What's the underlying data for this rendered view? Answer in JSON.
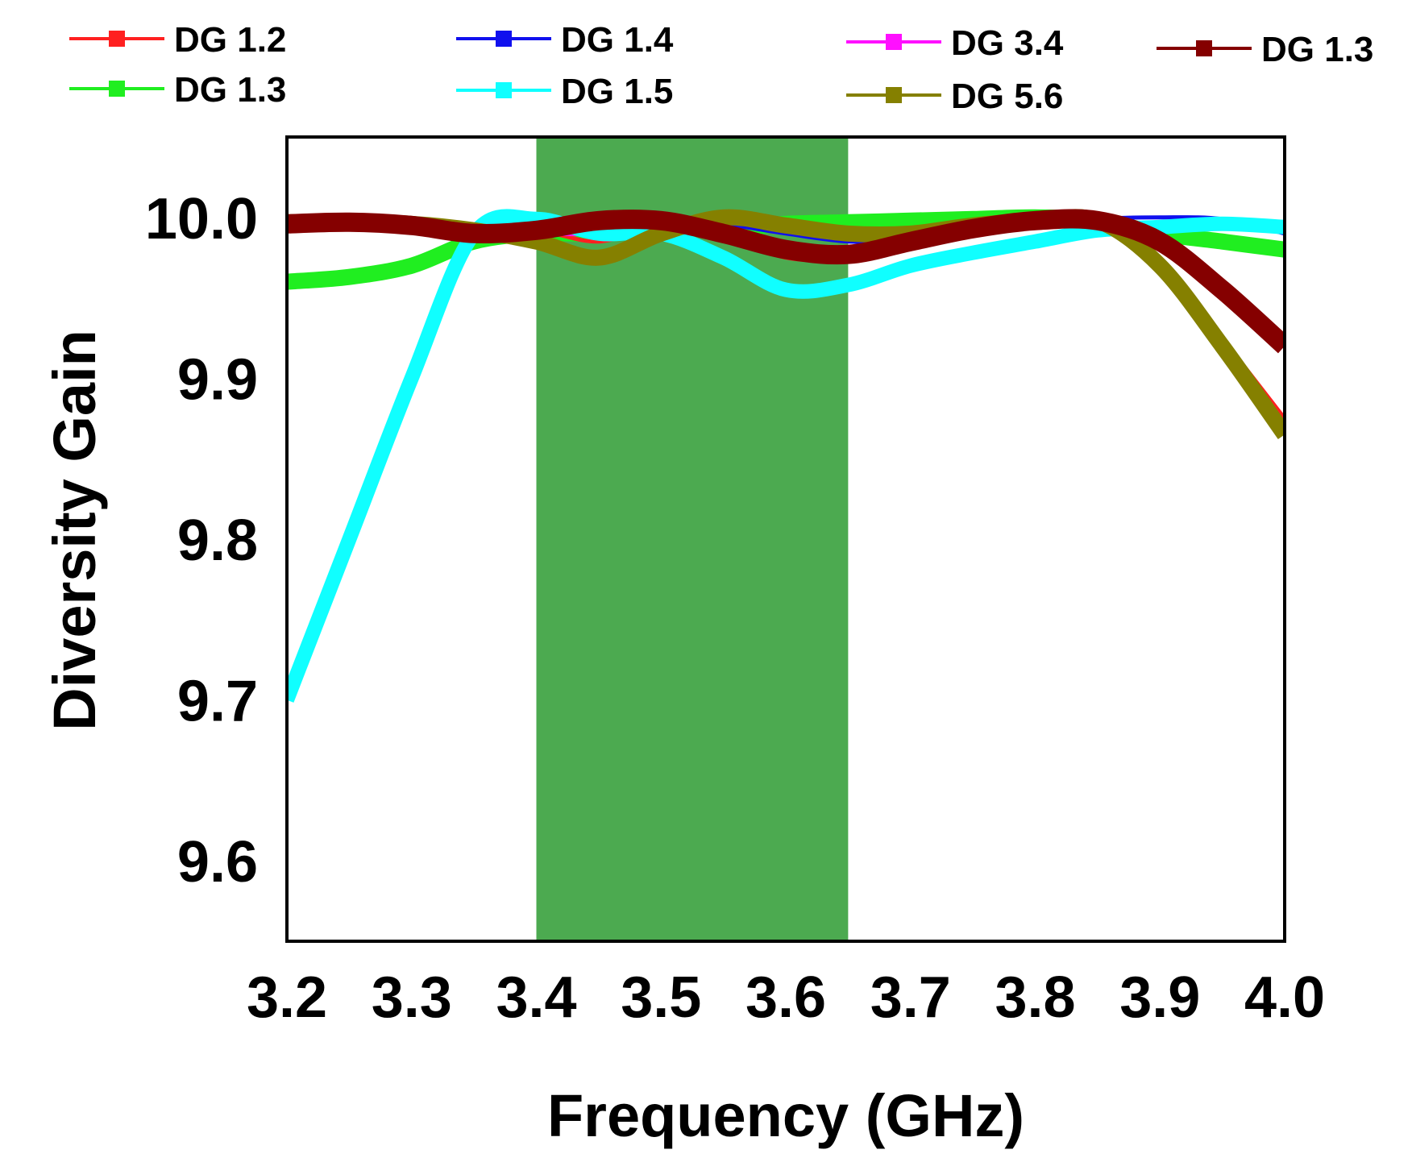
{
  "chart_data": {
    "type": "line",
    "title": "",
    "xlabel": "Frequency (GHz)",
    "ylabel": "Diversity Gain",
    "xlim": [
      3.2,
      4.0
    ],
    "ylim": [
      9.55,
      10.05
    ],
    "xticks": [
      "3.2",
      "3.3",
      "3.4",
      "3.5",
      "3.6",
      "3.7",
      "3.8",
      "3.9",
      "4.0"
    ],
    "yticks": [
      "9.6",
      "9.7",
      "9.8",
      "9.9",
      "10.0"
    ],
    "grid": false,
    "legend": "top",
    "band": {
      "x_start": 3.4,
      "x_end": 3.65,
      "color": "#4caa50"
    },
    "x": [
      3.2,
      3.25,
      3.3,
      3.35,
      3.4,
      3.45,
      3.5,
      3.55,
      3.6,
      3.65,
      3.7,
      3.75,
      3.8,
      3.85,
      3.9,
      3.95,
      4.0
    ],
    "series": [
      {
        "name": "DG 1.2",
        "color": "#ff2020",
        "values": [
          9.997,
          9.997,
          9.996,
          9.992,
          9.992,
          9.985,
          9.995,
          9.99,
          9.975,
          9.975,
          9.985,
          9.992,
          9.998,
          9.998,
          9.975,
          9.925,
          9.875
        ]
      },
      {
        "name": "DG 1.4",
        "color": "#1010ee",
        "values": [
          9.993,
          9.996,
          9.995,
          9.992,
          9.996,
          9.999,
          10.0,
          9.996,
          9.99,
          9.985,
          9.986,
          9.99,
          9.995,
          9.999,
          10.0,
          9.999,
          9.99
        ]
      },
      {
        "name": "DG 3.4",
        "color": "#ff10ff",
        "values": [
          9.996,
          9.997,
          9.996,
          9.992,
          9.99,
          9.99,
          9.995,
          9.99,
          9.98,
          9.977,
          9.985,
          9.993,
          9.998,
          9.998,
          9.985,
          9.955,
          9.92
        ]
      },
      {
        "name": "DG 1.3",
        "color": "#850000",
        "values": [
          9.996,
          9.997,
          9.995,
          9.99,
          9.992,
          9.998,
          9.998,
          9.99,
          9.98,
          9.977,
          9.985,
          9.993,
          9.998,
          9.998,
          9.985,
          9.955,
          9.92
        ]
      },
      {
        "name": "DG 1.3",
        "color": "#20ee20",
        "values": [
          9.96,
          9.963,
          9.97,
          9.985,
          9.99,
          9.99,
          9.993,
          9.993,
          9.996,
          9.997,
          9.998,
          9.999,
          10.0,
          9.998,
          9.99,
          9.985,
          9.98
        ]
      },
      {
        "name": "DG 1.5",
        "color": "#10ffff",
        "values": [
          9.7,
          9.8,
          9.9,
          9.99,
          9.999,
          9.99,
          9.99,
          9.975,
          9.955,
          9.958,
          9.97,
          9.978,
          9.985,
          9.992,
          9.994,
          9.996,
          9.994
        ]
      },
      {
        "name": "DG 5.6",
        "color": "#858000",
        "values": [
          9.997,
          9.997,
          9.996,
          9.992,
          9.985,
          9.975,
          9.99,
          10.0,
          9.995,
          9.99,
          9.99,
          9.995,
          9.998,
          9.998,
          9.97,
          9.92,
          9.865
        ]
      }
    ]
  }
}
